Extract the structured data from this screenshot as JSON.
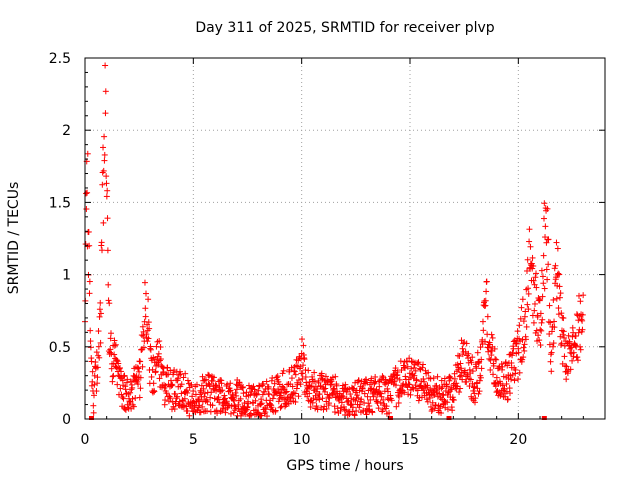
{
  "chart_data": {
    "type": "scatter",
    "title": "Day 311 of 2025, SRMTID for receiver plvp",
    "xlabel": "GPS time / hours",
    "ylabel": "SRMTID / TECUs",
    "xlim": [
      0,
      24
    ],
    "ylim": [
      0,
      2.5
    ],
    "xticks": [
      0,
      5,
      10,
      15,
      20
    ],
    "xtick_labels": [
      "0",
      "5",
      "10",
      "15",
      "20"
    ],
    "yticks": [
      0,
      0.5,
      1,
      1.5,
      2,
      2.5
    ],
    "ytick_labels": [
      "0",
      "0.5",
      "1",
      "1.5",
      "2",
      "2.5"
    ],
    "grid": true,
    "marker": "plus",
    "series": [
      {
        "name": "SRMTID",
        "color": "#ff0000",
        "profile": [
          [
            0.0,
            0.55
          ],
          [
            0.05,
            1.3
          ],
          [
            0.1,
            1.6
          ],
          [
            0.15,
            1.4
          ],
          [
            0.2,
            0.9
          ],
          [
            0.3,
            0.3
          ],
          [
            0.4,
            0.1
          ],
          [
            0.5,
            0.3
          ],
          [
            0.6,
            0.45
          ],
          [
            0.7,
            0.6
          ],
          [
            0.8,
            1.4
          ],
          [
            0.9,
            1.95
          ],
          [
            0.95,
            2.18
          ],
          [
            1.0,
            1.6
          ],
          [
            1.1,
            0.7
          ],
          [
            1.2,
            0.45
          ],
          [
            1.4,
            0.4
          ],
          [
            1.6,
            0.22
          ],
          [
            2.0,
            0.18
          ],
          [
            2.5,
            0.25
          ],
          [
            2.75,
            0.7
          ],
          [
            2.85,
            0.8
          ],
          [
            3.0,
            0.4
          ],
          [
            3.2,
            0.25
          ],
          [
            3.4,
            0.45
          ],
          [
            3.6,
            0.25
          ],
          [
            4.0,
            0.2
          ],
          [
            4.5,
            0.22
          ],
          [
            5.0,
            0.1
          ],
          [
            5.5,
            0.18
          ],
          [
            6.0,
            0.18
          ],
          [
            6.5,
            0.12
          ],
          [
            7.0,
            0.15
          ],
          [
            7.5,
            0.12
          ],
          [
            8.0,
            0.12
          ],
          [
            8.5,
            0.15
          ],
          [
            9.0,
            0.2
          ],
          [
            9.5,
            0.22
          ],
          [
            9.9,
            0.3
          ],
          [
            10.0,
            0.42
          ],
          [
            10.2,
            0.25
          ],
          [
            10.5,
            0.2
          ],
          [
            11.0,
            0.2
          ],
          [
            11.5,
            0.18
          ],
          [
            12.0,
            0.12
          ],
          [
            12.5,
            0.15
          ],
          [
            13.0,
            0.15
          ],
          [
            13.5,
            0.2
          ],
          [
            14.0,
            0.15
          ],
          [
            14.5,
            0.25
          ],
          [
            15.0,
            0.3
          ],
          [
            15.5,
            0.25
          ],
          [
            16.0,
            0.18
          ],
          [
            16.5,
            0.15
          ],
          [
            17.0,
            0.2
          ],
          [
            17.3,
            0.35
          ],
          [
            17.5,
            0.45
          ],
          [
            17.8,
            0.3
          ],
          [
            18.0,
            0.25
          ],
          [
            18.3,
            0.4
          ],
          [
            18.5,
            0.8
          ],
          [
            18.7,
            0.45
          ],
          [
            19.0,
            0.3
          ],
          [
            19.3,
            0.25
          ],
          [
            19.6,
            0.3
          ],
          [
            20.0,
            0.45
          ],
          [
            20.3,
            0.7
          ],
          [
            20.5,
            1.05
          ],
          [
            20.7,
            0.85
          ],
          [
            21.0,
            0.65
          ],
          [
            21.2,
            1.2
          ],
          [
            21.35,
            1.3
          ],
          [
            21.5,
            0.3
          ],
          [
            21.7,
            0.9
          ],
          [
            21.8,
            1.0
          ],
          [
            22.0,
            0.6
          ],
          [
            22.2,
            0.4
          ],
          [
            22.5,
            0.45
          ],
          [
            22.8,
            0.65
          ],
          [
            23.0,
            0.7
          ]
        ],
        "step_hours": 0.016,
        "scatter_spread": 0.1,
        "zero_points_x": [
          0.3,
          14.1,
          16.8,
          21.2
        ]
      }
    ]
  }
}
